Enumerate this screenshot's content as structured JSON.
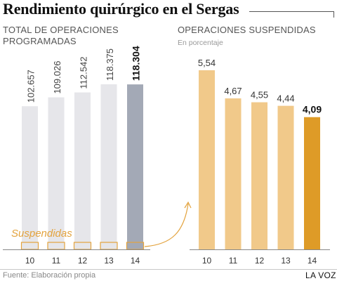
{
  "title": "Rendimiento quirúrgico en el Sergas",
  "footer": {
    "source": "Fuente: Elaboración propia",
    "brand": "LA VOZ"
  },
  "chart_data": [
    {
      "type": "bar",
      "title_line1": "TOTAL DE OPERACIONES",
      "title_line2": "PROGRAMADAS",
      "categories": [
        "10",
        "11",
        "12",
        "13",
        "14"
      ],
      "values": [
        102657,
        109026,
        112542,
        118375,
        118304
      ],
      "value_labels": [
        "102.657",
        "109.026",
        "112.542",
        "118.375",
        "118.304"
      ],
      "annotation": "Suspendidas",
      "colors": {
        "bar": "#e6e6ea",
        "highlight": "#a3a9b6",
        "annotation": "#e3a33e"
      }
    },
    {
      "type": "bar",
      "title": "OPERACIONES SUSPENDIDAS",
      "subtitle": "En porcentaje",
      "categories": [
        "10",
        "11",
        "12",
        "13",
        "14"
      ],
      "values": [
        5.54,
        4.67,
        4.55,
        4.44,
        4.09
      ],
      "value_labels": [
        "5,54",
        "4,67",
        "4,55",
        "4,44",
        "4,09"
      ],
      "colors": {
        "bar": "#f1c98a",
        "highlight": "#de9b27"
      }
    }
  ]
}
